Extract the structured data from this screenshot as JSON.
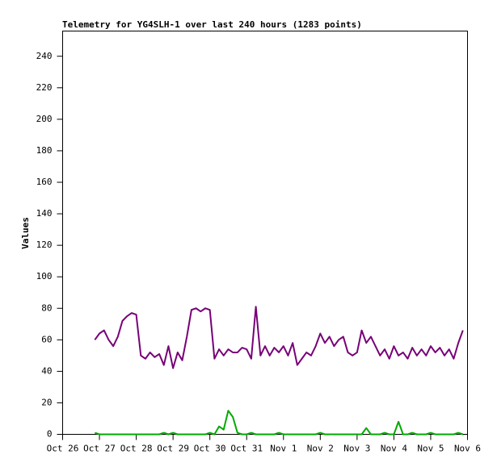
{
  "chart_data": {
    "type": "line",
    "title": "Telemetry for YG4SLH-1 over last 240 hours (1283 points)",
    "ylabel": "Values",
    "x": [
      0.875,
      1,
      1.125,
      1.25,
      1.375,
      1.5,
      1.625,
      1.75,
      1.875,
      2,
      2.125,
      2.25,
      2.375,
      2.5,
      2.625,
      2.75,
      2.875,
      3,
      3.125,
      3.25,
      3.375,
      3.5,
      3.625,
      3.75,
      3.875,
      4,
      4.125,
      4.25,
      4.375,
      4.5,
      4.625,
      4.75,
      4.875,
      5,
      5.125,
      5.25,
      5.375,
      5.5,
      5.625,
      5.75,
      5.875,
      6,
      6.125,
      6.25,
      6.375,
      6.5,
      6.625,
      6.75,
      6.875,
      7,
      7.125,
      7.25,
      7.375,
      7.5,
      7.625,
      7.75,
      7.875,
      8,
      8.125,
      8.25,
      8.375,
      8.5,
      8.625,
      8.75,
      8.875,
      9,
      9.125,
      9.25,
      9.375,
      9.5,
      9.625,
      9.75,
      9.875,
      10,
      10.125,
      10.25,
      10.375,
      10.5,
      10.625,
      10.75,
      10.875
    ],
    "series": [
      {
        "color": "#770077",
        "values": [
          60,
          64,
          66,
          60,
          56,
          62,
          72,
          75,
          77,
          76,
          50,
          48,
          52,
          49,
          51,
          44,
          56,
          42,
          52,
          47,
          62,
          79,
          80,
          78,
          80,
          79,
          48,
          54,
          50,
          54,
          52,
          52,
          55,
          54,
          48,
          81,
          50,
          56,
          50,
          55,
          52,
          56,
          50,
          58,
          44,
          48,
          52,
          50,
          56,
          64,
          58,
          62,
          56,
          60,
          62,
          52,
          50,
          52,
          66,
          58,
          62,
          56,
          50,
          54,
          48,
          56,
          50,
          52,
          48,
          55,
          50,
          54,
          50,
          56,
          52,
          55,
          50,
          54,
          48,
          58,
          66
        ]
      },
      {
        "color": "#00aa00",
        "values": [
          1,
          0,
          0,
          0,
          0,
          0,
          0,
          0,
          0,
          0,
          0,
          0,
          0,
          0,
          0,
          1,
          0,
          1,
          0,
          0,
          0,
          0,
          0,
          0,
          0,
          1,
          0,
          5,
          3,
          15,
          11,
          1,
          0,
          0,
          1,
          0,
          0,
          0,
          0,
          0,
          1,
          0,
          0,
          0,
          0,
          0,
          0,
          0,
          0,
          1,
          0,
          0,
          0,
          0,
          0,
          0,
          0,
          0,
          0,
          4,
          0,
          0,
          0,
          1,
          0,
          0,
          8,
          0,
          0,
          1,
          0,
          0,
          0,
          1,
          0,
          0,
          0,
          0,
          0,
          1,
          0
        ]
      }
    ],
    "xlim": [
      0,
      11
    ],
    "xticks": [
      {
        "value": 0,
        "label": "Oct 26"
      },
      {
        "value": 1,
        "label": "Oct 27"
      },
      {
        "value": 2,
        "label": "Oct 28"
      },
      {
        "value": 3,
        "label": "Oct 29"
      },
      {
        "value": 4,
        "label": "Oct 30"
      },
      {
        "value": 5,
        "label": "Oct 31"
      },
      {
        "value": 6,
        "label": "Nov 1"
      },
      {
        "value": 7,
        "label": "Nov 2"
      },
      {
        "value": 8,
        "label": "Nov 3"
      },
      {
        "value": 9,
        "label": "Nov 4"
      },
      {
        "value": 10,
        "label": "Nov 5"
      },
      {
        "value": 11,
        "label": "Nov 6"
      }
    ],
    "ylim": [
      0,
      256
    ],
    "yticks": [
      0,
      20,
      40,
      60,
      80,
      100,
      120,
      140,
      160,
      180,
      200,
      220,
      240
    ],
    "grid": false
  }
}
